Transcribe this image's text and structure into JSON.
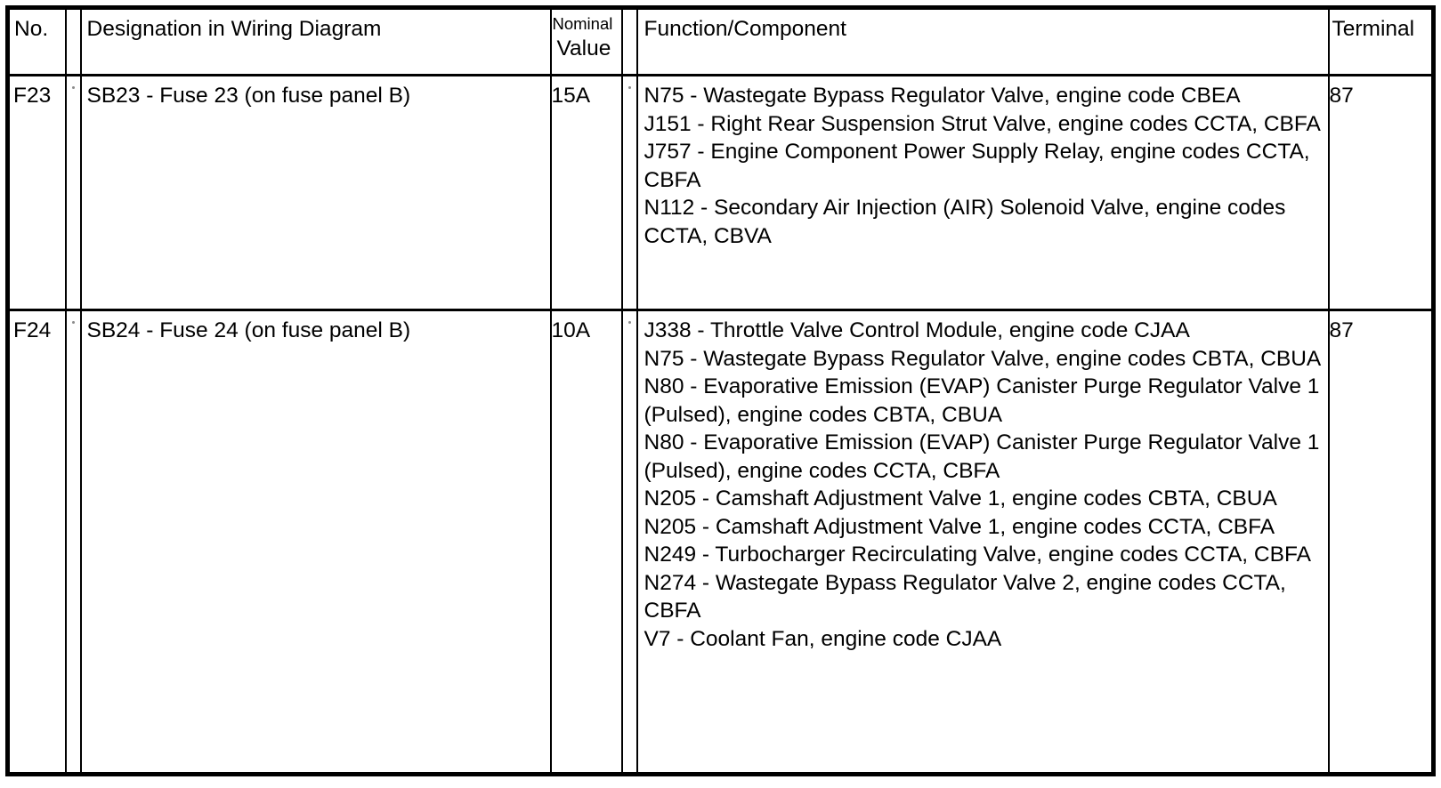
{
  "colors": {
    "background": "#ffffff",
    "border": "#000000",
    "text": "#000000"
  },
  "table": {
    "headers": {
      "no": "No.",
      "designation": "Designation in Wiring Diagram",
      "nominal_line1": "Nominal",
      "nominal_line2": "Value",
      "function": "Function/Component",
      "terminal": "Terminal"
    },
    "rows": [
      {
        "no": "F23",
        "designation": "SB23 - Fuse 23 (on fuse panel B)",
        "nominal_value": "15A",
        "terminal": "87",
        "functions": [
          "N75 - Wastegate Bypass Regulator Valve, engine code CBEA",
          "J151 - Right Rear Suspension Strut Valve, engine codes CCTA, CBFA",
          "J757 - Engine Component Power Supply Relay, engine codes CCTA, CBFA",
          "N112 - Secondary Air Injection (AIR) Solenoid Valve, engine codes CCTA, CBVA"
        ]
      },
      {
        "no": "F24",
        "designation": "SB24 - Fuse 24 (on fuse panel B)",
        "nominal_value": "10A",
        "terminal": "87",
        "functions": [
          "J338 - Throttle Valve Control Module, engine code CJAA",
          "N75 - Wastegate Bypass Regulator Valve, engine codes CBTA, CBUA",
          "N80 - Evaporative Emission (EVAP) Canister Purge Regulator Valve 1 (Pulsed), engine codes CBTA, CBUA",
          "N80 - Evaporative Emission (EVAP) Canister Purge Regulator Valve 1 (Pulsed), engine codes CCTA, CBFA",
          "N205 - Camshaft Adjustment Valve 1, engine codes CBTA, CBUA",
          "N205 - Camshaft Adjustment Valve 1, engine codes CCTA, CBFA",
          "N249 - Turbocharger Recirculating Valve, engine codes CCTA, CBFA",
          "N274 - Wastegate Bypass Regulator Valve 2, engine codes CCTA, CBFA",
          "V7 - Coolant Fan, engine code CJAA"
        ]
      }
    ]
  }
}
